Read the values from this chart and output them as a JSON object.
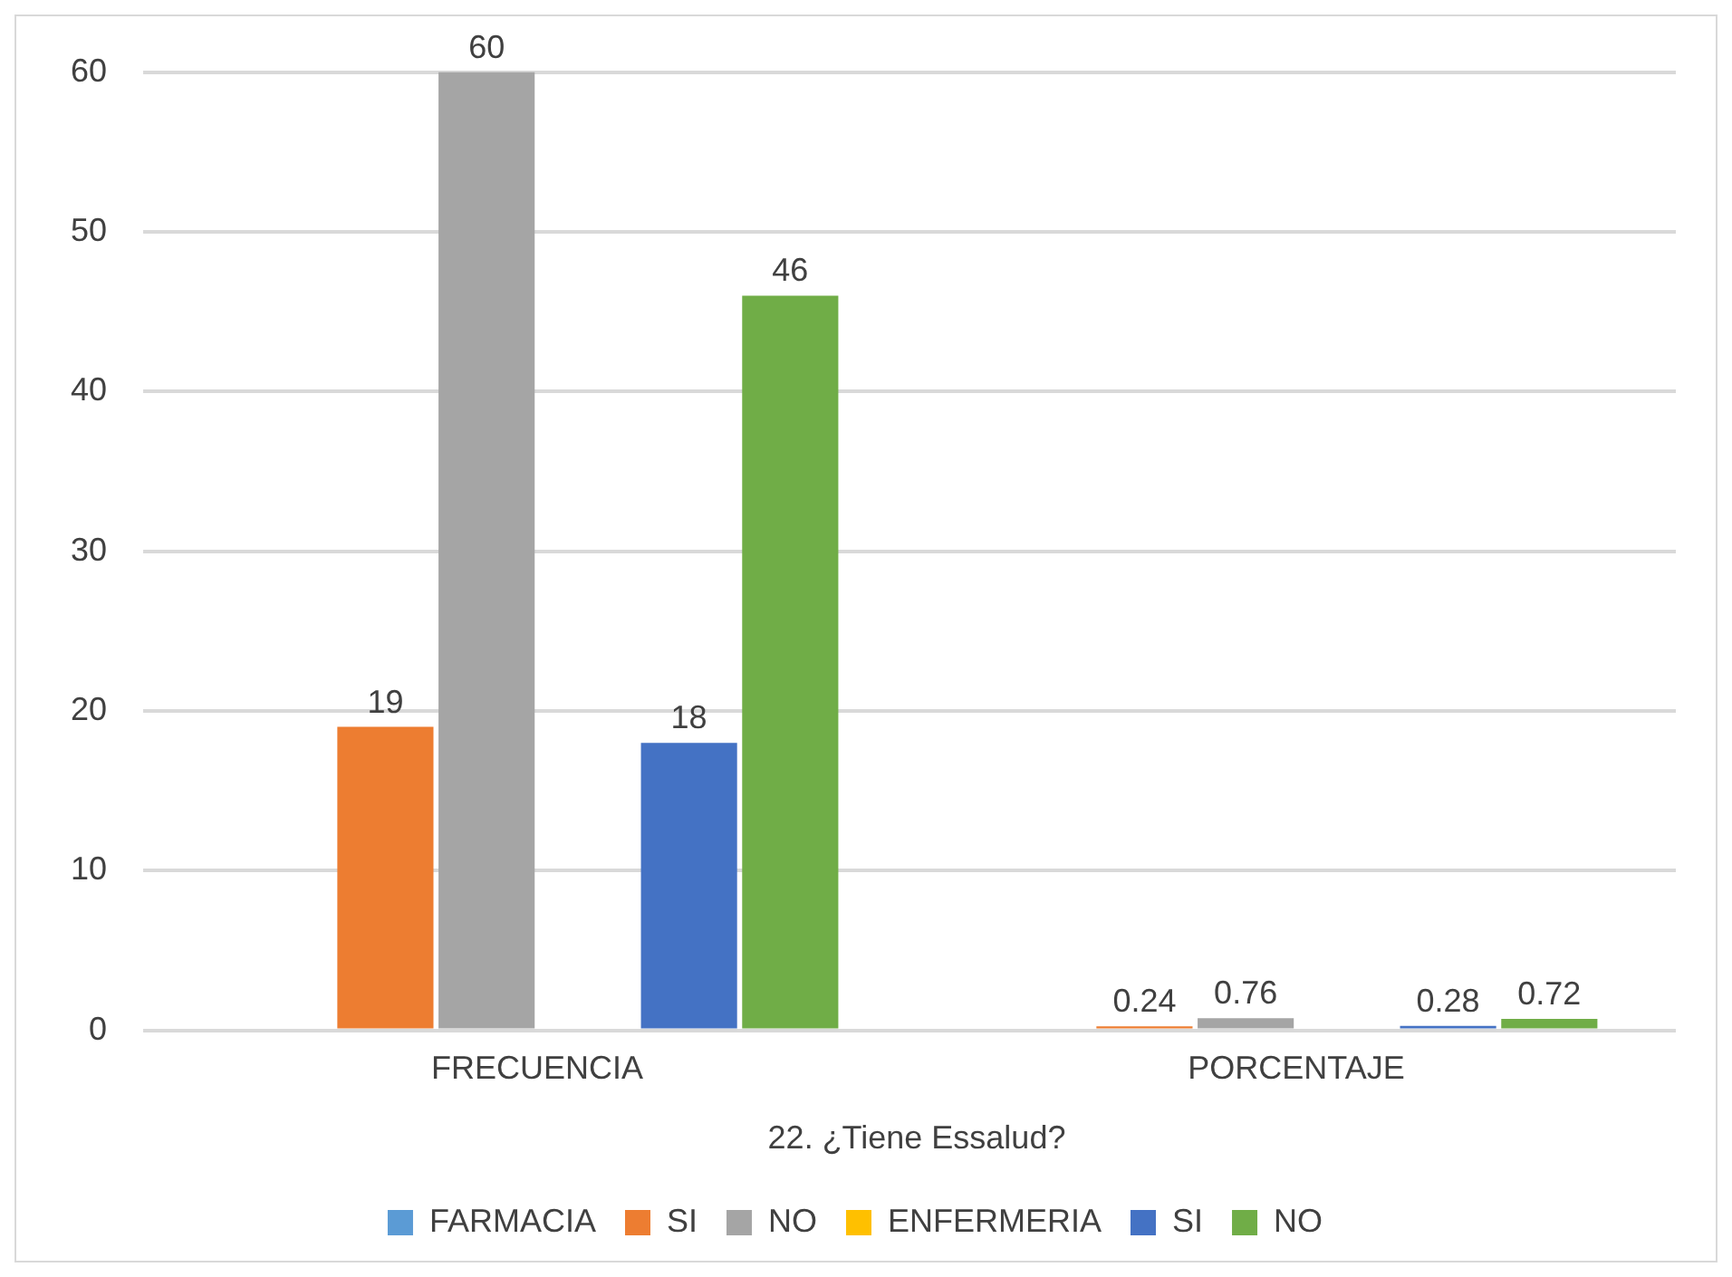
{
  "chart_data": {
    "type": "bar",
    "xlabel": "22. ¿Tiene Essalud?",
    "categories": [
      "FRECUENCIA",
      "PORCENTAJE"
    ],
    "series": [
      {
        "name": "FARMACIA",
        "color": "#5b9bd5",
        "values": [
          null,
          null
        ]
      },
      {
        "name": "SI",
        "color": "#ed7d31",
        "values": [
          19,
          0.24
        ]
      },
      {
        "name": "NO",
        "color": "#a5a5a5",
        "values": [
          60,
          0.76
        ]
      },
      {
        "name": "ENFERMERIA",
        "color": "#ffc000",
        "values": [
          null,
          null
        ]
      },
      {
        "name": "SI",
        "color": "#4472c4",
        "values": [
          18,
          0.28
        ]
      },
      {
        "name": "NO",
        "color": "#70ad47",
        "values": [
          46,
          0.72
        ]
      }
    ],
    "ylim": [
      0,
      60
    ],
    "yticks": [
      0,
      10,
      20,
      30,
      40,
      50,
      60
    ],
    "grid": "y",
    "legend": "bottom",
    "data_labels": true
  }
}
